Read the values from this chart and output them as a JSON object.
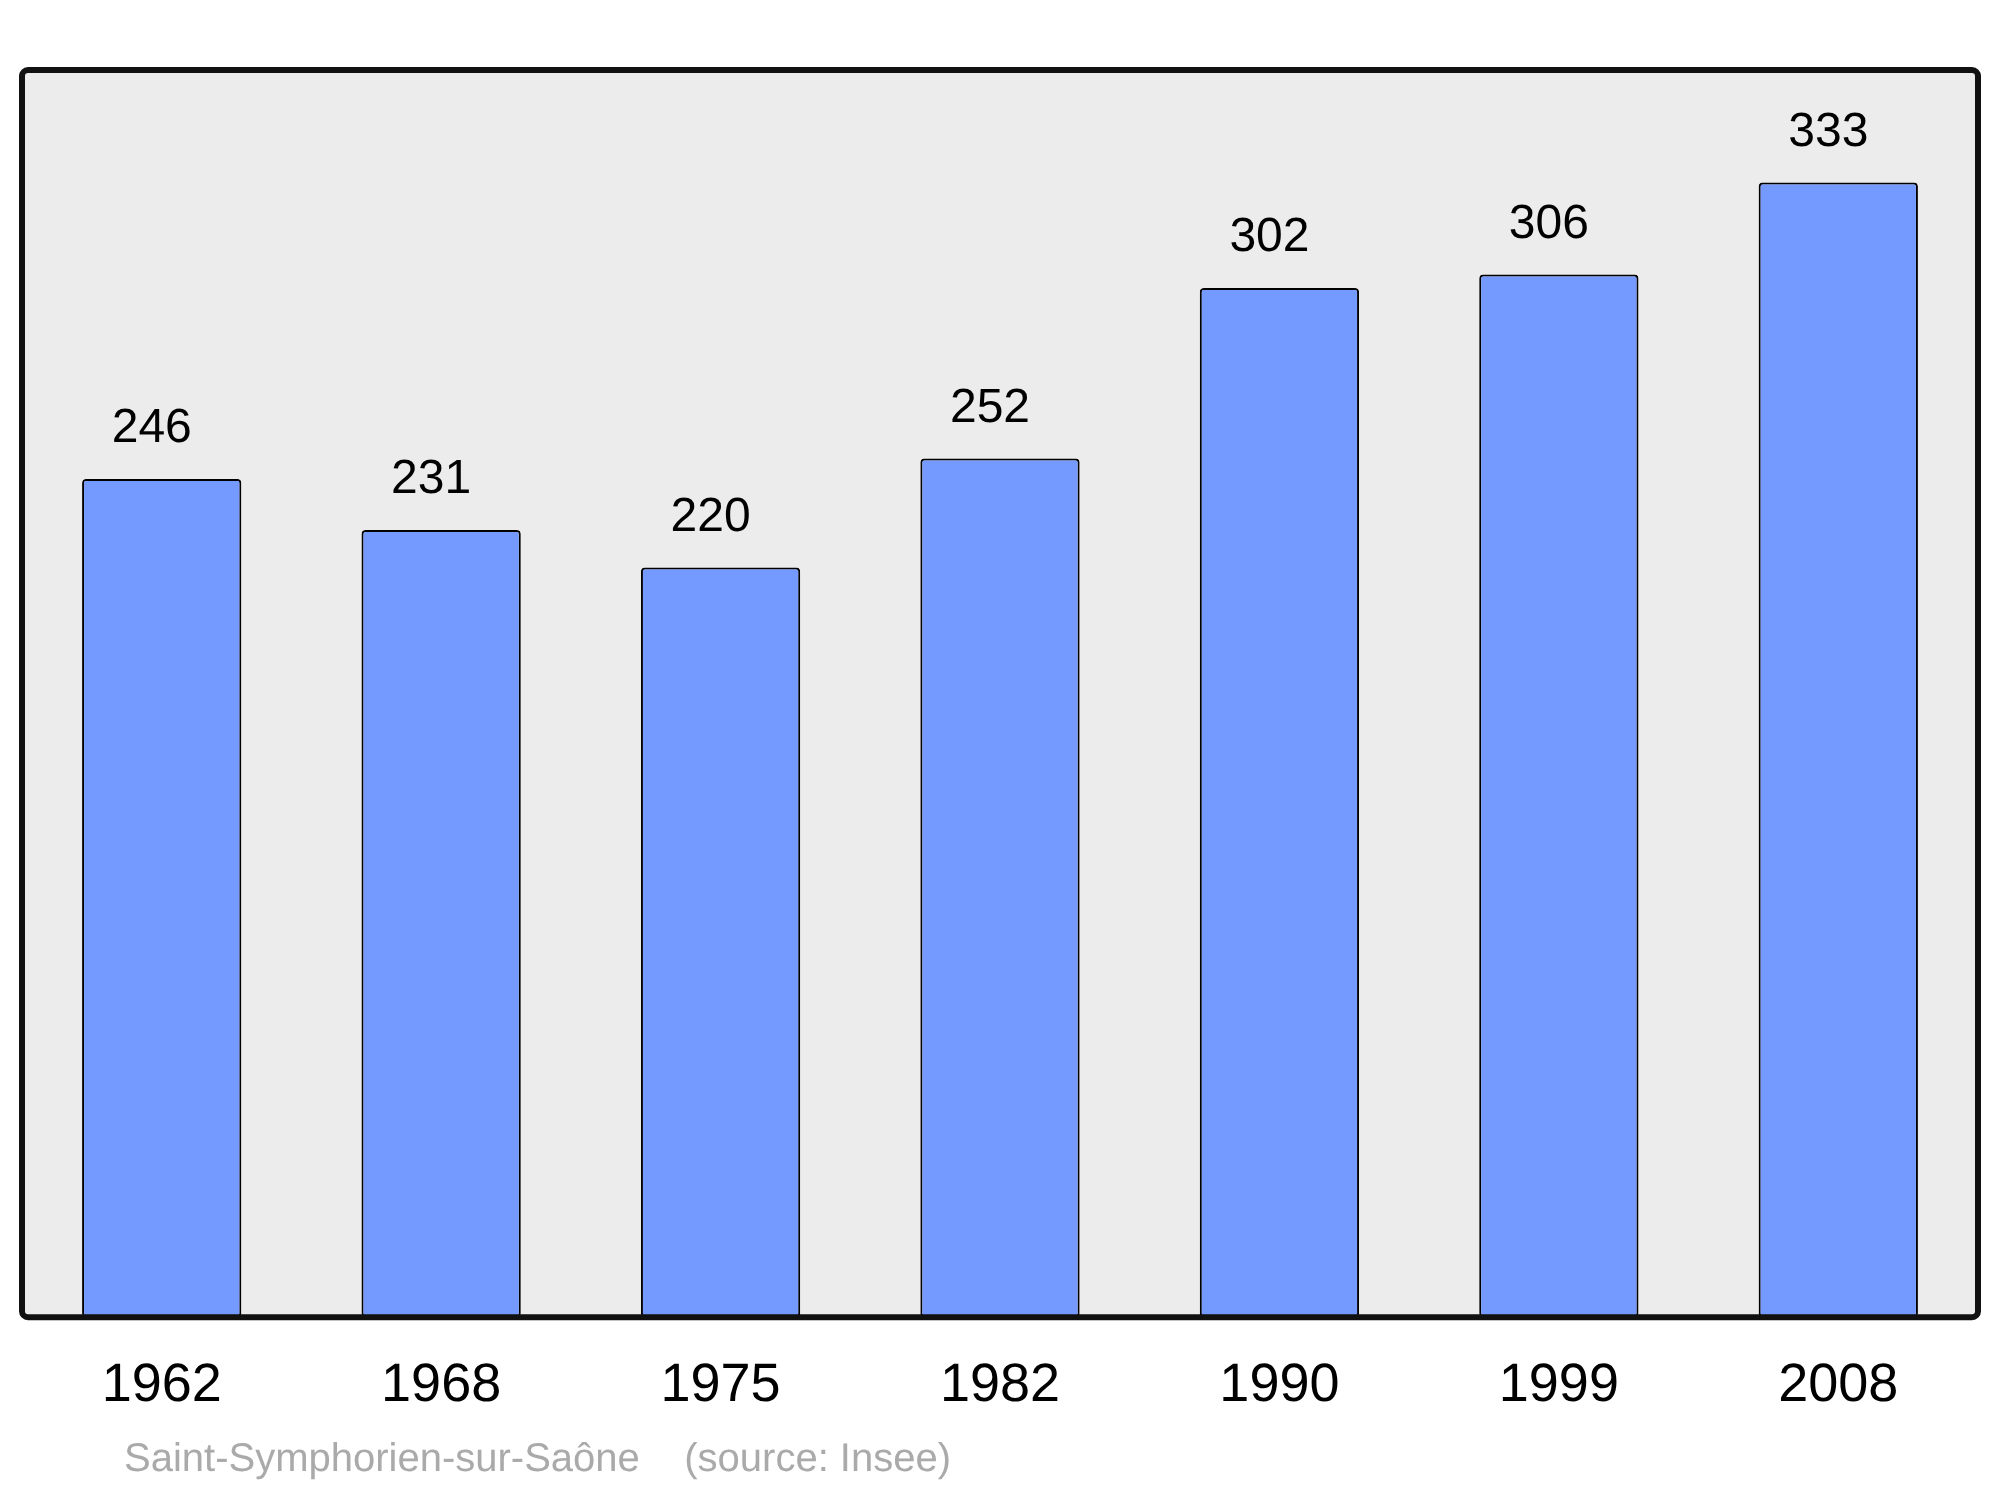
{
  "chart_data": {
    "type": "bar",
    "categories": [
      "1962",
      "1968",
      "1975",
      "1982",
      "1990",
      "1999",
      "2008"
    ],
    "values": [
      246,
      231,
      220,
      252,
      302,
      306,
      333
    ],
    "color": "#7499ff",
    "ylim": [
      0,
      366
    ],
    "data_labels": true,
    "grid": false,
    "legend": false,
    "tick_labels": "x",
    "annotations": [
      "Saint-Symphorien-sur-Saône    (source: Insee)"
    ]
  }
}
